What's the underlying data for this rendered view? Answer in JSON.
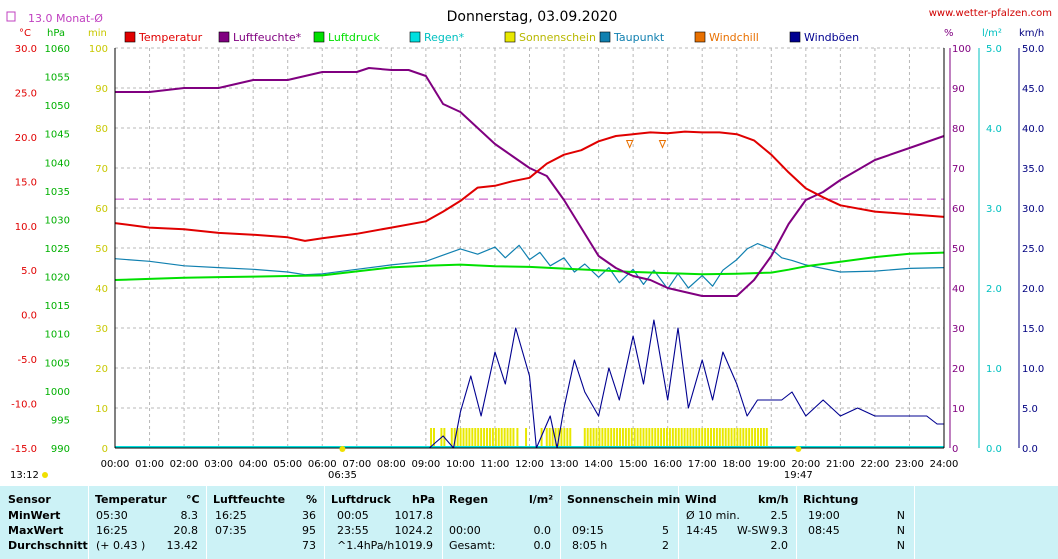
{
  "chart_data": {
    "type": "line",
    "title": "Donnerstag, 03.09.2020",
    "watermark": "www.wetter-pfalzen.com",
    "month_avg_label": "13.0 Monat-Ø",
    "month_avg_value": 13.0,
    "axes": {
      "temperature": {
        "unit": "°C",
        "range": [
          -15,
          30
        ],
        "ticks": [
          "30.0",
          "25.0",
          "20.0",
          "15.0",
          "10.0",
          "5.0",
          "0.0",
          "-5.0",
          "-10.0",
          "-15.0"
        ]
      },
      "pressure": {
        "unit": "hPa",
        "range": [
          990,
          1060
        ],
        "ticks": [
          "1060",
          "1055",
          "1050",
          "1045",
          "1040",
          "1035",
          "1030",
          "1025",
          "1020",
          "1015",
          "1010",
          "1005",
          "1000",
          "995",
          "990"
        ]
      },
      "rain_minutes": {
        "unit": "min",
        "range": [
          0,
          100
        ],
        "ticks": [
          "100",
          "90",
          "80",
          "70",
          "60",
          "50",
          "40",
          "30",
          "20",
          "10",
          "0"
        ]
      },
      "humidity": {
        "unit": "%",
        "range": [
          0,
          100
        ],
        "ticks": [
          "100",
          "90",
          "80",
          "70",
          "60",
          "50",
          "40",
          "30",
          "20",
          "10",
          "0"
        ]
      },
      "rain": {
        "unit": "l/m²",
        "range": [
          0,
          5
        ],
        "ticks": [
          "5.0",
          "4.0",
          "3.0",
          "2.0",
          "1.0",
          "0.0"
        ]
      },
      "wind": {
        "unit": "km/h",
        "range": [
          0,
          50
        ],
        "ticks": [
          "50.0",
          "45.0",
          "40.0",
          "35.0",
          "30.0",
          "25.0",
          "20.0",
          "15.0",
          "10.0",
          "5.0",
          "0.0"
        ]
      },
      "x": {
        "range": [
          0,
          24
        ],
        "ticks": [
          "00:00",
          "01:00",
          "02:00",
          "03:00",
          "04:00",
          "05:00",
          "06:00",
          "07:00",
          "08:00",
          "09:00",
          "10:00",
          "11:00",
          "12:00",
          "13:00",
          "14:00",
          "15:00",
          "16:00",
          "17:00",
          "18:00",
          "19:00",
          "20:00",
          "21:00",
          "22:00",
          "23:00",
          "24:00"
        ]
      }
    },
    "sunrise": "06:35",
    "sunset": "19:47",
    "left_time": "13:12",
    "grid": true,
    "legend": [
      {
        "name": "Temperatur",
        "color": "#e00000"
      },
      {
        "name": "Luftfeuchte*",
        "color": "#800080"
      },
      {
        "name": "Luftdruck",
        "color": "#00e000"
      },
      {
        "name": "Regen*",
        "color": "#00e0e0"
      },
      {
        "name": "Sonnenschein",
        "color": "#e8e800"
      },
      {
        "name": "Taupunkt",
        "color": "#1080b0"
      },
      {
        "name": "Windchill",
        "color": "#e87000"
      },
      {
        "name": "Windböen",
        "color": "#000090"
      }
    ],
    "series": {
      "temperature": {
        "x": [
          0,
          1,
          2,
          3,
          4,
          5,
          5.5,
          6,
          7,
          8,
          9,
          9.5,
          10,
          10.5,
          11,
          11.5,
          12,
          12.5,
          13,
          13.5,
          14,
          14.5,
          15,
          15.5,
          16,
          16.5,
          17,
          17.5,
          18,
          18.5,
          19,
          19.5,
          20,
          20.5,
          21,
          22,
          23,
          24
        ],
        "y": [
          10.3,
          9.8,
          9.6,
          9.2,
          9.0,
          8.7,
          8.3,
          8.6,
          9.1,
          9.8,
          10.5,
          11.6,
          12.8,
          14.3,
          14.5,
          15.0,
          15.4,
          17.0,
          18.0,
          18.5,
          19.5,
          20.1,
          20.3,
          20.5,
          20.4,
          20.6,
          20.5,
          20.5,
          20.3,
          19.6,
          18.0,
          16.0,
          14.2,
          13.2,
          12.3,
          11.6,
          11.3,
          11.0
        ]
      },
      "humidity": {
        "x": [
          0,
          1,
          2,
          3,
          4,
          5,
          6,
          7,
          7.35,
          8,
          8.5,
          9,
          9.5,
          10,
          10.5,
          11,
          11.5,
          12,
          12.5,
          13,
          13.5,
          14,
          14.5,
          15,
          15.5,
          16,
          16.5,
          17,
          17.5,
          18,
          18.5,
          19,
          19.5,
          20,
          20.5,
          21,
          22,
          23,
          24
        ],
        "y": [
          89,
          89,
          90,
          90,
          92,
          92,
          94,
          94,
          95,
          94.5,
          94.5,
          93,
          86,
          84,
          80,
          76,
          73,
          70,
          68,
          62,
          55,
          48,
          45,
          43,
          42,
          40,
          39,
          38,
          38,
          38,
          42,
          48,
          56,
          62,
          64,
          67,
          72,
          75,
          78
        ]
      },
      "pressure": {
        "x": [
          0,
          1,
          2,
          3,
          4,
          5,
          6,
          7,
          8,
          9,
          10,
          11,
          12,
          13,
          14,
          15,
          16,
          17,
          18,
          19,
          19.5,
          20,
          21,
          22,
          23,
          23.98,
          24
        ],
        "y": [
          1019.4,
          1019.6,
          1019.8,
          1019.9,
          1020.0,
          1020.1,
          1020.2,
          1020.9,
          1021.6,
          1021.9,
          1022.1,
          1021.8,
          1021.7,
          1021.4,
          1021.1,
          1020.8,
          1020.6,
          1020.4,
          1020.5,
          1020.7,
          1021.2,
          1021.8,
          1022.6,
          1023.4,
          1024.0,
          1024.2,
          1024.2
        ]
      },
      "dewpoint": {
        "x": [
          0,
          1,
          2,
          3,
          4,
          5,
          5.5,
          6,
          7,
          8,
          9,
          10,
          10.5,
          11,
          11.3,
          11.7,
          12,
          12.3,
          12.6,
          13,
          13.3,
          13.6,
          14,
          14.3,
          14.6,
          15,
          15.3,
          15.6,
          16,
          16.3,
          16.6,
          17,
          17.3,
          17.6,
          18,
          18.3,
          18.6,
          19,
          19.3,
          19.6,
          20,
          21,
          22,
          23,
          24
        ],
        "y": [
          6.3,
          6.0,
          5.5,
          5.3,
          5.1,
          4.8,
          4.5,
          4.6,
          5.1,
          5.6,
          6.0,
          7.4,
          6.8,
          7.6,
          6.4,
          7.8,
          6.2,
          7.0,
          5.5,
          6.4,
          4.8,
          5.7,
          4.2,
          5.3,
          3.6,
          5.1,
          3.4,
          5.0,
          2.9,
          4.6,
          3.0,
          4.4,
          3.2,
          5.0,
          6.2,
          7.4,
          8.0,
          7.4,
          6.4,
          6.1,
          5.6,
          4.8,
          4.9,
          5.2,
          5.3
        ]
      },
      "gusts": {
        "x": [
          0,
          9.1,
          9.5,
          9.8,
          10,
          10.3,
          10.6,
          11,
          11.3,
          11.6,
          12,
          12.2,
          12.6,
          12.8,
          13,
          13.3,
          13.6,
          14,
          14.3,
          14.6,
          15,
          15.3,
          15.6,
          16,
          16.3,
          16.6,
          17,
          17.3,
          17.6,
          18,
          18.3,
          18.6,
          19,
          19.3,
          19.6,
          20,
          20.5,
          21,
          21.5,
          22,
          22.5,
          23,
          23.5,
          23.8,
          24
        ],
        "y": [
          0,
          0,
          1.5,
          0,
          4.5,
          9,
          4,
          12,
          8,
          15,
          9,
          0,
          4,
          0,
          5,
          11,
          7,
          4,
          10,
          6,
          14,
          8,
          16,
          6,
          15,
          5,
          11,
          6,
          12,
          8,
          4,
          6,
          6,
          6,
          7,
          4,
          6,
          4,
          5,
          4,
          4,
          4,
          4,
          3,
          3
        ]
      },
      "windchill_x": [
        14.9,
        15.85
      ]
    },
    "sunshine_intervals": [
      [
        9.15,
        9.27
      ],
      [
        9.45,
        9.6
      ],
      [
        9.75,
        11.55
      ],
      [
        11.65,
        11.7
      ],
      [
        11.9,
        11.95
      ],
      [
        12.35,
        12.4
      ],
      [
        12.5,
        13.25
      ],
      [
        13.6,
        18.9
      ]
    ]
  },
  "table": {
    "headers": {
      "sensor": "Sensor",
      "temperature": "Temperatur",
      "temperature_unit": "°C",
      "humidity": "Luftfeuchte",
      "humidity_unit": "%",
      "pressure": "Luftdruck",
      "pressure_unit": "hPa",
      "rain": "Regen",
      "rain_unit": "l/m²",
      "sun": "Sonnenschein min",
      "wind": "Wind",
      "wind_unit": "km/h",
      "direction": "Richtung"
    },
    "rows": [
      {
        "label": "MinWert",
        "t_time": "05:30",
        "t_val": "8.3",
        "h_time": "16:25",
        "h_val": "36",
        "p_time": "00:05",
        "p_val": "1017.8",
        "r_time": "",
        "r_val": "",
        "s_time": "",
        "s_val": "",
        "w_time": "Ø 10 min.",
        "w_dir": "",
        "w_val": "2.5",
        "d_time": "19:00",
        "d_val": "N"
      },
      {
        "label": "MaxWert",
        "t_time": "16:25",
        "t_val": "20.8",
        "h_time": "07:35",
        "h_val": "95",
        "p_time": "23:55",
        "p_val": "1024.2",
        "r_time": "00:00",
        "r_val": "0.0",
        "s_time": "09:15",
        "s_val": "5",
        "w_time": "14:45",
        "w_dir": "W-SW",
        "w_val": "9.3",
        "d_time": "08:45",
        "d_val": "N"
      },
      {
        "label": "Durchschnitt",
        "t_time": "(+ 0.43 )",
        "t_val": "13.42",
        "h_time": "",
        "h_val": "73",
        "p_time": "^1.4hPa/h",
        "p_val": "1019.9",
        "r_time": "Gesamt:",
        "r_val": "0.0",
        "s_time": "8:05 h",
        "s_val": "2",
        "w_time": "",
        "w_dir": "",
        "w_val": "2.0",
        "d_time": "",
        "d_val": "N"
      }
    ]
  }
}
